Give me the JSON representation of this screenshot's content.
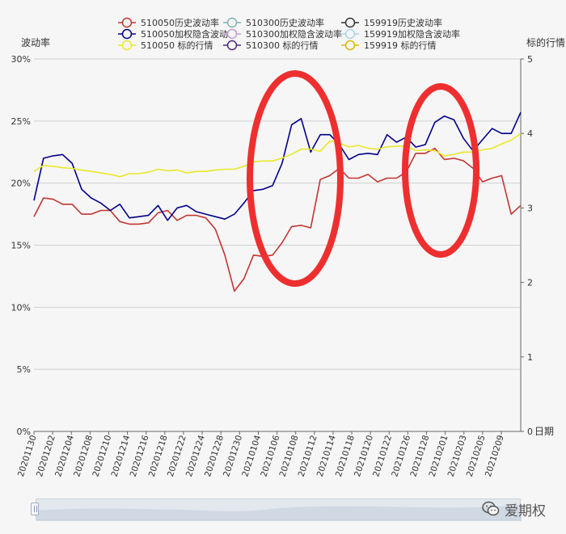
{
  "chart_data": {
    "type": "line",
    "left_axis": {
      "name": "波动率",
      "ticks": [
        "0%",
        "5%",
        "10%",
        "15%",
        "20%",
        "25%",
        "30%"
      ],
      "ylim": [
        0,
        30
      ]
    },
    "right_axis": {
      "name": "标的行情",
      "ticks": [
        "0",
        "1",
        "2",
        "3",
        "4",
        "5"
      ],
      "ylim": [
        0,
        5
      ]
    },
    "x_axis": {
      "name": "日期"
    },
    "legend": [
      {
        "label": "510050历史波动率",
        "color": "#c23531"
      },
      {
        "label": "510050加权隐含波动率",
        "color": "#00008b"
      },
      {
        "label": "510050 标的行情",
        "color": "#e8e82a"
      },
      {
        "label": "510300历史波动率",
        "color": "#7fb3b3"
      },
      {
        "label": "510300加权隐含波动率",
        "color": "#c39bd3"
      },
      {
        "label": "510300 标的行情",
        "color": "#4b2a7b"
      },
      {
        "label": "159919历史波动率",
        "color": "#333333"
      },
      {
        "label": "159919加权隐含波动率",
        "color": "#a9d3e8"
      },
      {
        "label": "159919 标的行情",
        "color": "#d4b800"
      }
    ],
    "x_tick_labels": [
      "20201130",
      "20201202",
      "20201204",
      "20201208",
      "20201210",
      "20201214",
      "20201216",
      "20201218",
      "20201222",
      "20201224",
      "20201228",
      "20201230",
      "20210104",
      "20210106",
      "20210108",
      "20210112",
      "20210114",
      "20210118",
      "20210120",
      "20210122",
      "20210126",
      "20210128",
      "20210201",
      "20210203",
      "20210205",
      "20210209"
    ],
    "series": [
      {
        "name": "510050历史波动率",
        "axis": "left",
        "color": "#c23531",
        "values": [
          17.3,
          18.8,
          18.7,
          18.3,
          18.3,
          17.5,
          17.5,
          17.8,
          17.8,
          16.9,
          16.7,
          16.7,
          16.8,
          17.6,
          17.8,
          17.0,
          17.4,
          17.4,
          17.2,
          16.3,
          14.2,
          11.3,
          12.3,
          14.2,
          14.1,
          14.2,
          15.2,
          16.5,
          16.6,
          16.4,
          20.3,
          20.6,
          21.2,
          20.4,
          20.4,
          20.7,
          20.1,
          20.4,
          20.4,
          20.9,
          22.4,
          22.4,
          22.8,
          21.9,
          22.0,
          21.8,
          21.2,
          20.1,
          20.4,
          20.6,
          17.5,
          18.2
        ]
      },
      {
        "name": "510050加权隐含波动率",
        "axis": "left",
        "color": "#00008b",
        "values": [
          18.6,
          22.0,
          22.2,
          22.3,
          21.6,
          19.5,
          18.8,
          18.4,
          17.8,
          18.3,
          17.2,
          17.3,
          17.4,
          18.2,
          17.0,
          18.0,
          18.2,
          17.7,
          17.5,
          17.3,
          17.1,
          17.5,
          18.4,
          19.4,
          19.5,
          19.8,
          21.6,
          24.7,
          25.2,
          22.5,
          23.9,
          23.9,
          23.1,
          21.9,
          22.3,
          22.4,
          22.3,
          23.9,
          23.3,
          23.7,
          22.9,
          23.1,
          24.9,
          25.4,
          25.1,
          23.6,
          22.6,
          23.5,
          24.4,
          24.0,
          24.0,
          25.7
        ]
      },
      {
        "name": "510050 标的行情",
        "axis": "right",
        "color": "#e8e82a",
        "values": [
          3.49,
          3.57,
          3.56,
          3.54,
          3.53,
          3.51,
          3.49,
          3.47,
          3.45,
          3.42,
          3.46,
          3.46,
          3.48,
          3.52,
          3.5,
          3.51,
          3.47,
          3.49,
          3.49,
          3.51,
          3.52,
          3.52,
          3.56,
          3.62,
          3.63,
          3.63,
          3.67,
          3.72,
          3.79,
          3.79,
          3.76,
          3.9,
          3.87,
          3.82,
          3.84,
          3.8,
          3.79,
          3.82,
          3.83,
          3.83,
          3.77,
          3.78,
          3.77,
          3.7,
          3.72,
          3.75,
          3.75,
          3.78,
          3.8,
          3.86,
          3.91,
          4.0
        ]
      }
    ],
    "annotations": [
      {
        "shape": "ellipse",
        "color": "#ee2f2f"
      },
      {
        "shape": "ellipse",
        "color": "#ee2f2f"
      }
    ]
  },
  "watermark": {
    "text": "爱期权"
  }
}
